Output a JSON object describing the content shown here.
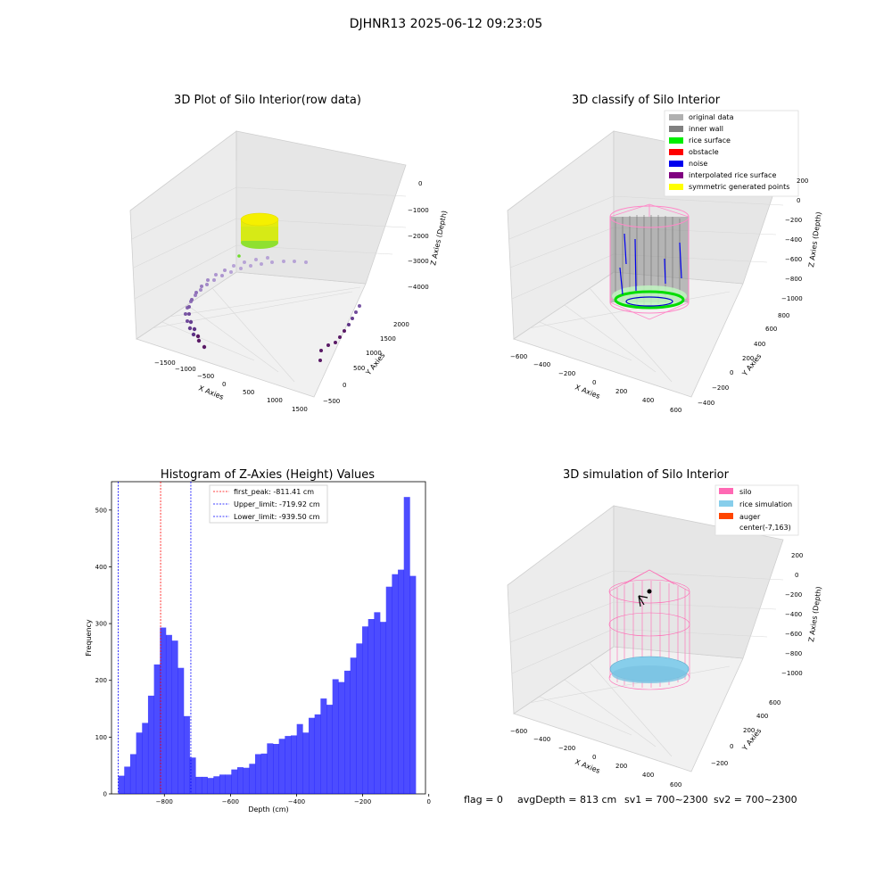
{
  "suptitle": "DJHNR13 2025-06-12 09:23:05",
  "status": {
    "flag": "flag = 0",
    "avg_depth": "avgDepth = 813 cm",
    "sv1": "sv1 = 700~2300",
    "sv2": "sv2 = 700~2300"
  },
  "panel_raw": {
    "title": "3D Plot of Silo Interior(row data)",
    "x_label": "X Axies",
    "y_label": "Y Axies",
    "z_label": "Z Axies (Depth)",
    "x_ticks": [
      "−1500",
      "−1000",
      "−500",
      "0",
      "500",
      "1000",
      "1500"
    ],
    "y_ticks": [
      "−500",
      "0",
      "500",
      "1000",
      "1500",
      "2000"
    ],
    "z_ticks": [
      "0",
      "−1000",
      "−2000",
      "−3000",
      "−4000"
    ],
    "point_colors": {
      "near": "#5a1a66",
      "far": "#b7a3d6",
      "surface_top": "#f5f000",
      "surface_bottom": "#6fdc2a"
    }
  },
  "panel_classify": {
    "title": "3D classify of Silo Interior",
    "x_label": "X Axies",
    "y_label": "Y Axies",
    "z_label": "Z Axies (Depth)",
    "x_ticks": [
      "−600",
      "−400",
      "−200",
      "0",
      "200",
      "400",
      "600"
    ],
    "y_ticks": [
      "−400",
      "−200",
      "0",
      "200",
      "400",
      "600",
      "800"
    ],
    "z_ticks": [
      "200",
      "0",
      "−200",
      "−400",
      "−600",
      "−800",
      "−1000"
    ],
    "legend": [
      {
        "label": "original data",
        "color": "#b0b0b0"
      },
      {
        "label": "inner wall",
        "color": "#808080"
      },
      {
        "label": "rice surface",
        "color": "#00ee00"
      },
      {
        "label": "obstacle",
        "color": "#ff0000"
      },
      {
        "label": "noise",
        "color": "#0000ee"
      },
      {
        "label": "interpolated rice surface",
        "color": "#800080"
      },
      {
        "label": "symmetric generated points",
        "color": "#ffff00"
      }
    ]
  },
  "panel_sim": {
    "title": "3D simulation of Silo Interior",
    "x_label": "X Axies",
    "y_label": "Y Axies",
    "z_label": "Z Axies (Depth)",
    "x_ticks": [
      "−600",
      "−400",
      "−200",
      "0",
      "200",
      "400",
      "600"
    ],
    "y_ticks": [
      "−200",
      "0",
      "200",
      "400",
      "600"
    ],
    "z_ticks": [
      "200",
      "0",
      "−200",
      "−400",
      "−600",
      "−800",
      "−1000"
    ],
    "legend": [
      {
        "label": "silo",
        "color": "#ff69b4"
      },
      {
        "label": "rice simulation",
        "color": "#87ceeb"
      },
      {
        "label": "auger",
        "color": "#ff4500"
      },
      {
        "label": "center(-7,163)",
        "color": "#ffffff"
      }
    ]
  },
  "chart_data": [
    {
      "type": "bar",
      "title": "Histogram of Z-Axies (Height) Values",
      "xlabel": "Depth (cm)",
      "ylabel": "Frequency",
      "xlim": [
        -960,
        -10
      ],
      "ylim": [
        0,
        550
      ],
      "x_ticks": [
        "−800",
        "−600",
        "−400",
        "−200",
        "0"
      ],
      "x_tick_values": [
        -800,
        -600,
        -400,
        -200,
        0
      ],
      "y_ticks": [
        "0",
        "100",
        "200",
        "300",
        "400",
        "500"
      ],
      "y_tick_values": [
        0,
        100,
        200,
        300,
        400,
        500
      ],
      "bar_color": "#0000ff",
      "bin_start": -939.5,
      "bin_width": 18.0,
      "values": [
        32,
        48,
        70,
        108,
        125,
        173,
        228,
        293,
        280,
        270,
        222,
        137,
        64,
        30,
        30,
        28,
        31,
        34,
        34,
        43,
        47,
        46,
        53,
        70,
        71,
        89,
        88,
        97,
        102,
        103,
        123,
        108,
        134,
        140,
        168,
        157,
        202,
        197,
        217,
        240,
        265,
        295,
        308,
        320,
        303,
        365,
        387,
        395,
        523,
        384
      ],
      "vlines": [
        {
          "label": "first_peak: -811.41 cm",
          "x": -811.41,
          "color": "#ff0000"
        },
        {
          "label": "Upper_limit: -719.92 cm",
          "x": -719.92,
          "color": "#0000ff"
        },
        {
          "label": "Lower_limit: -939.50 cm",
          "x": -939.5,
          "color": "#0000ff"
        }
      ],
      "legend_position": "top-center"
    }
  ]
}
